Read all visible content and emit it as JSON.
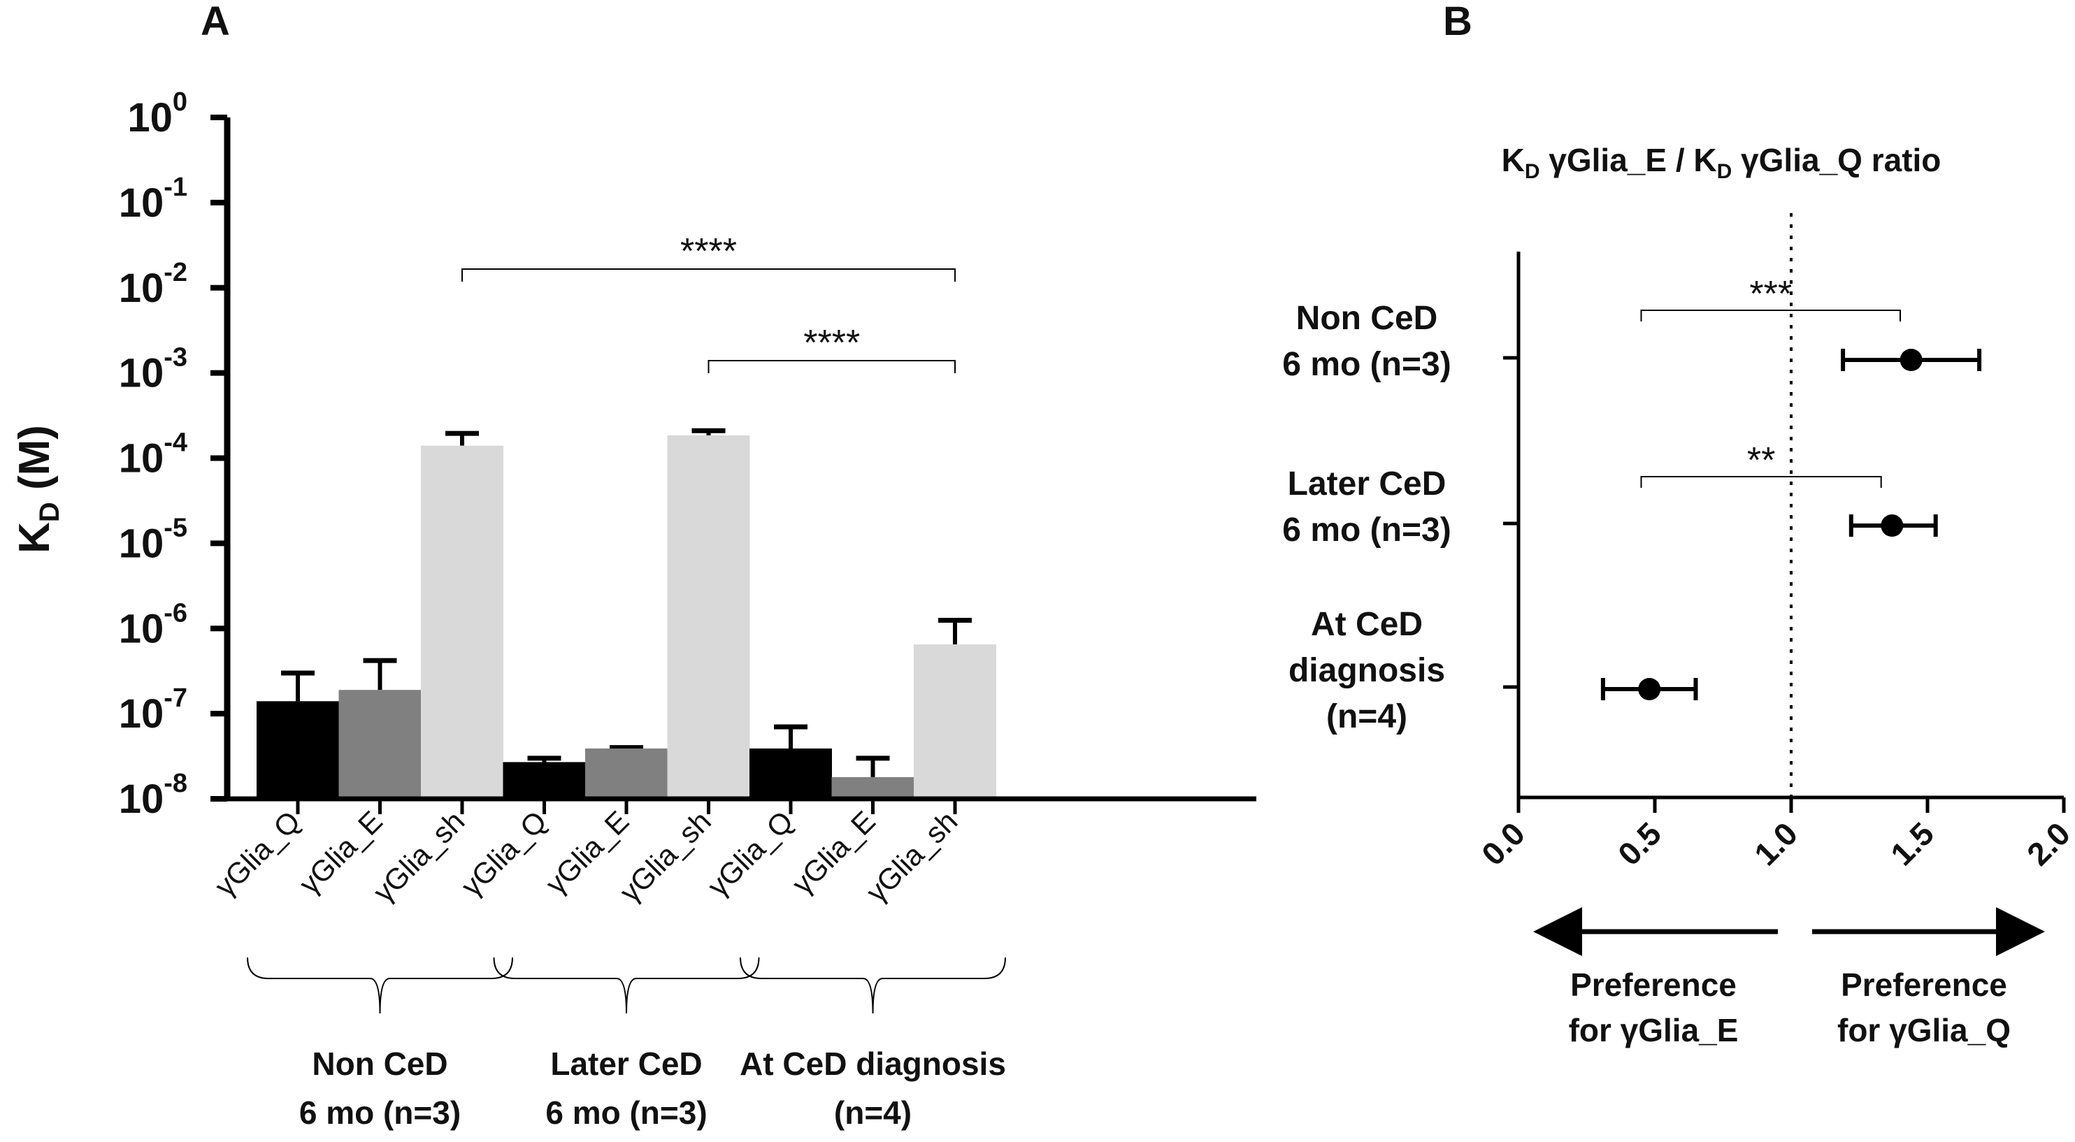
{
  "panel_a_label": "A",
  "panel_b_label": "B",
  "chart_data": [
    {
      "type": "bar",
      "panel": "A",
      "ylabel_main": "K",
      "ylabel_sub": "D",
      "ylabel_unit": "(M)",
      "yscale": "log",
      "ylim_exponents": [
        -8,
        0
      ],
      "ytick_base": "10",
      "ytick_exponents": [
        "0",
        "-1",
        "-2",
        "-3",
        "-4",
        "-5",
        "-6",
        "-7",
        "-8"
      ],
      "categories": [
        "γGlia_Q",
        "γGlia_E",
        "γGlia_sh",
        "γGlia_Q",
        "γGlia_E",
        "γGlia_sh",
        "γGlia_Q",
        "γGlia_E",
        "γGlia_sh"
      ],
      "values": [
        1.4e-07,
        1.9e-07,
        0.00014,
        2.7e-08,
        3.9e-08,
        0.000185,
        3.9e-08,
        1.8e-08,
        6.5e-07
      ],
      "error_upper": [
        3e-07,
        4.2e-07,
        0.000195,
        3e-08,
        4e-08,
        0.00021,
        7e-08,
        3e-08,
        1.25e-06
      ],
      "bar_colors": [
        "#000000",
        "#808080",
        "#d9d9d9",
        "#000000",
        "#808080",
        "#d9d9d9",
        "#000000",
        "#808080",
        "#d9d9d9"
      ],
      "groups": [
        {
          "line1": "Non CeD",
          "line2": "6 mo  (n=3)"
        },
        {
          "line1": "Later CeD",
          "line2": "6 mo  (n=3)"
        },
        {
          "line1": "At CeD diagnosis",
          "line2": "(n=4)"
        }
      ],
      "significance": [
        {
          "from_index": 2,
          "to_index": 8,
          "label": "****"
        },
        {
          "from_index": 5,
          "to_index": 8,
          "label": "****"
        }
      ]
    },
    {
      "type": "scatter",
      "panel": "B",
      "title_parts": [
        "K",
        "D",
        " γGlia_E / K",
        "D",
        " γGlia_Q ratio"
      ],
      "xlim": [
        0.0,
        2.0
      ],
      "xticks": [
        "0.0",
        "0.5",
        "1.0",
        "1.5",
        "2.0"
      ],
      "reference_line_x": 1.0,
      "categories": [
        {
          "line1": "Non CeD",
          "line2": "6 mo  (n=3)",
          "line3": ""
        },
        {
          "line1": "Later CeD",
          "line2": "6 mo  (n=3)",
          "line3": ""
        },
        {
          "line1": "At CeD",
          "line2": "diagnosis",
          "line3": "(n=4)"
        }
      ],
      "values": [
        1.44,
        1.37,
        0.48
      ],
      "err_low": [
        1.19,
        1.22,
        0.31
      ],
      "err_high": [
        1.69,
        1.53,
        0.65
      ],
      "significance": [
        {
          "x_from": 0.45,
          "x_to": 1.4,
          "label": "***"
        },
        {
          "x_from": 0.45,
          "x_to": 1.33,
          "label": "**"
        }
      ],
      "arrow_left": {
        "line1": "Preference",
        "line2": "for γGlia_E"
      },
      "arrow_right": {
        "line1": "Preference",
        "line2": "for γGlia_Q"
      }
    }
  ]
}
